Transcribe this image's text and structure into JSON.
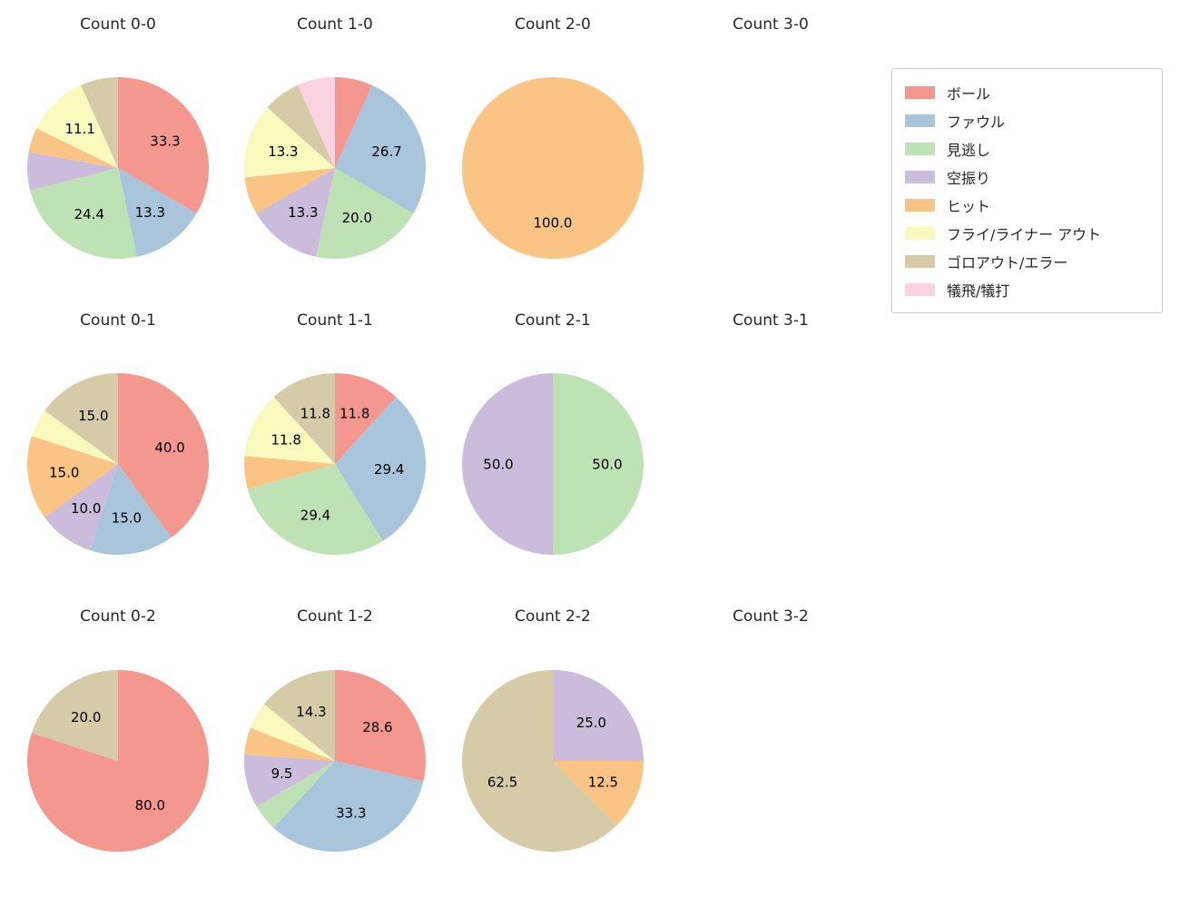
{
  "figure": {
    "background": "#ffffff"
  },
  "legend": {
    "items": [
      {
        "key": "ball",
        "label": "ボール",
        "color": "#f4978e"
      },
      {
        "key": "foul",
        "label": "ファウル",
        "color": "#a8c5dc"
      },
      {
        "key": "called-strike",
        "label": "見逃し",
        "color": "#bfe2b4"
      },
      {
        "key": "swinging-strike",
        "label": "空振り",
        "color": "#cbbcdb"
      },
      {
        "key": "hit",
        "label": "ヒット",
        "color": "#fac484"
      },
      {
        "key": "fly-liner-out",
        "label": "フライ/ライナー アウト",
        "color": "#fafabe"
      },
      {
        "key": "ground-out-error",
        "label": "ゴロアウト/エラー",
        "color": "#d5cba6"
      },
      {
        "key": "sacrifice",
        "label": "犠飛/犠打",
        "color": "#fbd3e2"
      }
    ]
  },
  "chart_data": [
    {
      "type": "pie",
      "title": "Count 0-0",
      "row": 0,
      "col": 0,
      "slices": [
        {
          "legend": "ボール",
          "value": 33.3,
          "label": "33.3"
        },
        {
          "legend": "ファウル",
          "value": 13.3,
          "label": "13.3"
        },
        {
          "legend": "見逃し",
          "value": 24.4,
          "label": "24.4"
        },
        {
          "legend": "空振り",
          "value": 6.7,
          "label": ""
        },
        {
          "legend": "ヒット",
          "value": 4.4,
          "label": ""
        },
        {
          "legend": "フライ/ライナー アウト",
          "value": 11.1,
          "label": "11.1"
        },
        {
          "legend": "ゴロアウト/エラー",
          "value": 6.7,
          "label": ""
        }
      ]
    },
    {
      "type": "pie",
      "title": "Count 1-0",
      "row": 0,
      "col": 1,
      "slices": [
        {
          "legend": "ボール",
          "value": 6.7,
          "label": ""
        },
        {
          "legend": "ファウル",
          "value": 26.7,
          "label": "26.7"
        },
        {
          "legend": "見逃し",
          "value": 20.0,
          "label": "20.0"
        },
        {
          "legend": "空振り",
          "value": 13.3,
          "label": "13.3"
        },
        {
          "legend": "ヒット",
          "value": 6.7,
          "label": ""
        },
        {
          "legend": "フライ/ライナー アウト",
          "value": 13.3,
          "label": "13.3"
        },
        {
          "legend": "ゴロアウト/エラー",
          "value": 6.7,
          "label": ""
        },
        {
          "legend": "犠飛/犠打",
          "value": 6.7,
          "label": ""
        }
      ]
    },
    {
      "type": "pie",
      "title": "Count 2-0",
      "row": 0,
      "col": 2,
      "slices": [
        {
          "legend": "ヒット",
          "value": 100.0,
          "label": "100.0"
        }
      ]
    },
    {
      "type": "pie",
      "title": "Count 3-0",
      "row": 0,
      "col": 3,
      "slices": []
    },
    {
      "type": "pie",
      "title": "Count 0-1",
      "row": 1,
      "col": 0,
      "slices": [
        {
          "legend": "ボール",
          "value": 40.0,
          "label": "40.0"
        },
        {
          "legend": "ファウル",
          "value": 15.0,
          "label": "15.0"
        },
        {
          "legend": "空振り",
          "value": 10.0,
          "label": "10.0"
        },
        {
          "legend": "ヒット",
          "value": 15.0,
          "label": "15.0"
        },
        {
          "legend": "フライ/ライナー アウト",
          "value": 5.0,
          "label": ""
        },
        {
          "legend": "ゴロアウト/エラー",
          "value": 15.0,
          "label": "15.0"
        }
      ]
    },
    {
      "type": "pie",
      "title": "Count 1-1",
      "row": 1,
      "col": 1,
      "slices": [
        {
          "legend": "ボール",
          "value": 11.8,
          "label": "11.8"
        },
        {
          "legend": "ファウル",
          "value": 29.4,
          "label": "29.4"
        },
        {
          "legend": "見逃し",
          "value": 29.4,
          "label": "29.4"
        },
        {
          "legend": "ヒット",
          "value": 5.9,
          "label": ""
        },
        {
          "legend": "フライ/ライナー アウト",
          "value": 11.8,
          "label": "11.8"
        },
        {
          "legend": "ゴロアウト/エラー",
          "value": 11.8,
          "label": "11.8"
        }
      ]
    },
    {
      "type": "pie",
      "title": "Count 2-1",
      "row": 1,
      "col": 2,
      "slices": [
        {
          "legend": "見逃し",
          "value": 50.0,
          "label": "50.0"
        },
        {
          "legend": "空振り",
          "value": 50.0,
          "label": "50.0"
        }
      ]
    },
    {
      "type": "pie",
      "title": "Count 3-1",
      "row": 1,
      "col": 3,
      "slices": []
    },
    {
      "type": "pie",
      "title": "Count 0-2",
      "row": 2,
      "col": 0,
      "slices": [
        {
          "legend": "ボール",
          "value": 80.0,
          "label": "80.0"
        },
        {
          "legend": "ゴロアウト/エラー",
          "value": 20.0,
          "label": "20.0"
        }
      ]
    },
    {
      "type": "pie",
      "title": "Count 1-2",
      "row": 2,
      "col": 1,
      "slices": [
        {
          "legend": "ボール",
          "value": 28.6,
          "label": "28.6"
        },
        {
          "legend": "ファウル",
          "value": 33.3,
          "label": "33.3"
        },
        {
          "legend": "見逃し",
          "value": 4.8,
          "label": ""
        },
        {
          "legend": "空振り",
          "value": 9.5,
          "label": "9.5"
        },
        {
          "legend": "ヒット",
          "value": 4.8,
          "label": ""
        },
        {
          "legend": "フライ/ライナー アウト",
          "value": 4.8,
          "label": ""
        },
        {
          "legend": "ゴロアウト/エラー",
          "value": 14.3,
          "label": "14.3"
        }
      ]
    },
    {
      "type": "pie",
      "title": "Count 2-2",
      "row": 2,
      "col": 2,
      "slices": [
        {
          "legend": "空振り",
          "value": 25.0,
          "label": "25.0"
        },
        {
          "legend": "ヒット",
          "value": 12.5,
          "label": "12.5"
        },
        {
          "legend": "ゴロアウト/エラー",
          "value": 62.5,
          "label": "62.5"
        }
      ]
    },
    {
      "type": "pie",
      "title": "Count 3-2",
      "row": 2,
      "col": 3,
      "slices": []
    }
  ]
}
